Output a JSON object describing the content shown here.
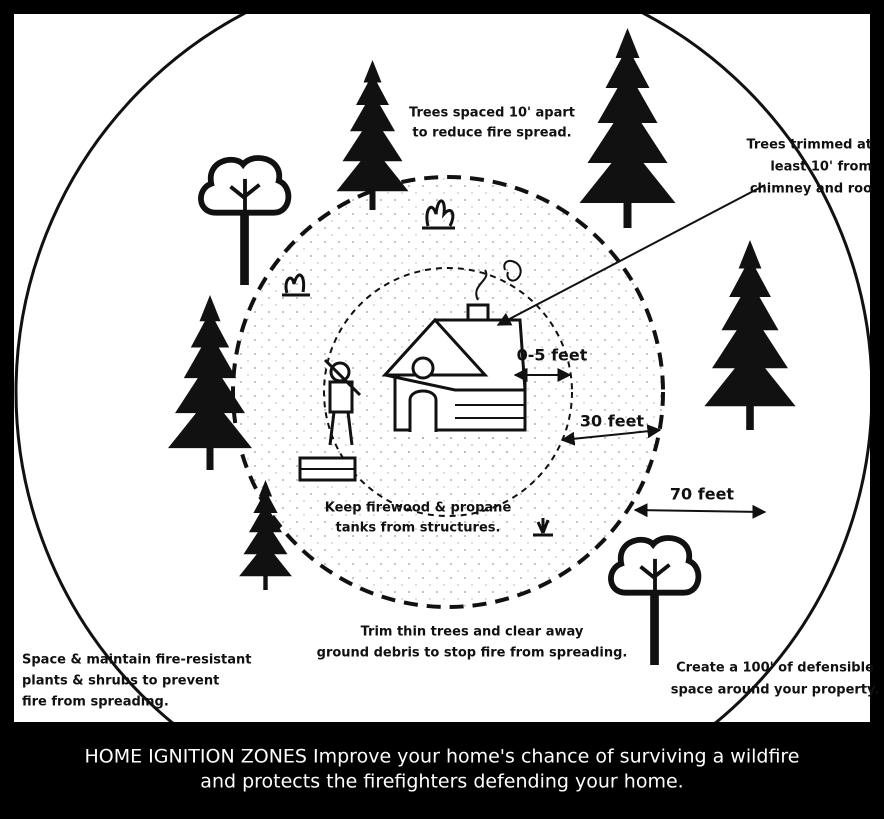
{
  "labels": {
    "trees_spaced": [
      "Trees spaced 10' apart",
      "to reduce fire spread."
    ],
    "trees_trimmed": [
      "Trees trimmed at",
      "least 10' from",
      "chimney and roo"
    ],
    "firewood": [
      "Keep firewood & propane",
      "tanks from structures."
    ],
    "trim_thin": [
      "Trim thin trees and clear away",
      "ground debris to stop fire from spreading."
    ],
    "space_maintain": [
      "Space & maintain fire-resistant",
      "plants & shrubs to prevent",
      "fire from spreading."
    ],
    "create_space": [
      "Create a 100' of defensible",
      "space around your property."
    ]
  },
  "distances": {
    "inner": "0-5 feet",
    "middle": "30 feet",
    "outer": "70 feet"
  },
  "caption": [
    "HOME IGNITION ZONES Improve your home's chance of surviving a wildfire",
    "and protects the firefighters defending your home."
  ]
}
